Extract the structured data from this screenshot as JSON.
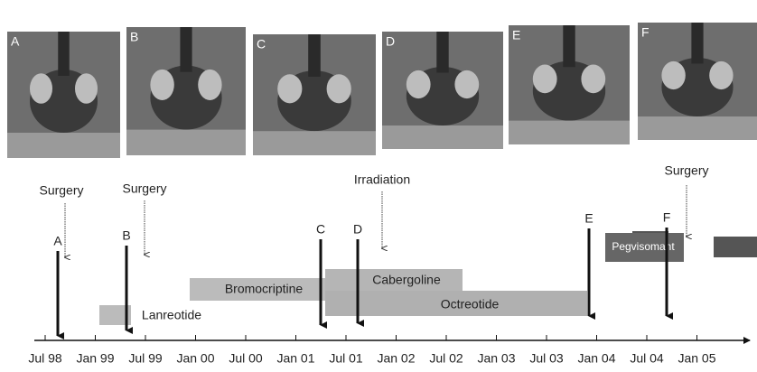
{
  "images": [
    "A",
    "B",
    "C",
    "D",
    "E",
    "F"
  ],
  "annotations": [
    "Surgery",
    "Surgery",
    "Irradiation",
    "Surgery"
  ],
  "events": [
    "A",
    "B",
    "C",
    "D",
    "E",
    "F"
  ],
  "treatments": [
    "Lanreotide",
    "Bromocriptine",
    "Cabergoline",
    "Octreotide",
    "Pegvisomant"
  ],
  "axis_labels": [
    "Jul 98",
    "Jan 99",
    "Jul 99",
    "Jan 00",
    "Jul 00",
    "Jan 01",
    "Jul 01",
    "Jan 02",
    "Jul 02",
    "Jan 03",
    "Jul 03",
    "Jan 04",
    "Jul 04",
    "Jan 05"
  ]
}
